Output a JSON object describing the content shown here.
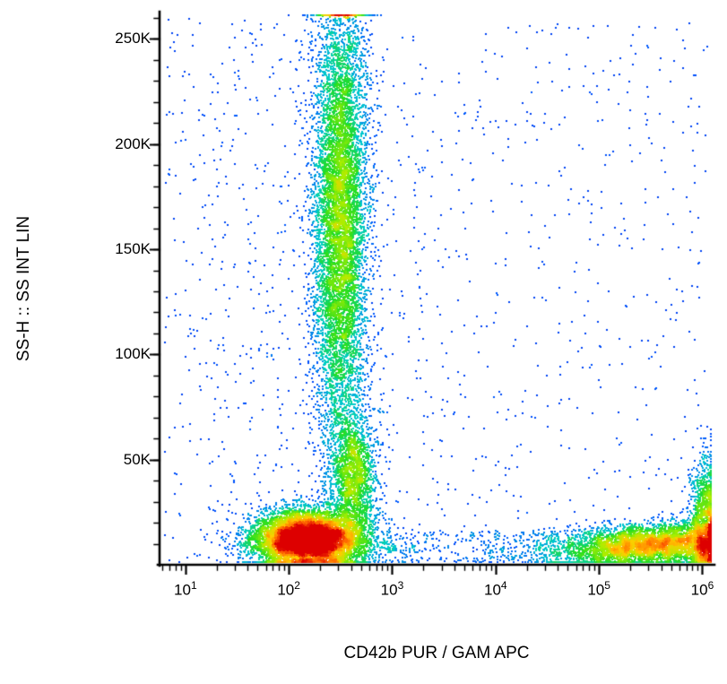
{
  "figure": {
    "background": "#ffffff",
    "axis_color": "#000000"
  },
  "chart_data": {
    "type": "scatter",
    "subtype": "flow_cytometry_density_dot_plot",
    "title": "",
    "xlabel": "CD42b PUR / GAM APC",
    "ylabel": "SS-H :: SS INT LIN",
    "x_scale": "log10",
    "y_scale": "linear",
    "x_domain_log10": [
      0.75,
      6.1
    ],
    "y_domain": [
      0,
      262144
    ],
    "x_ticks": [
      {
        "value": 10,
        "base": "10",
        "exp": "1"
      },
      {
        "value": 100,
        "base": "10",
        "exp": "2"
      },
      {
        "value": 1000,
        "base": "10",
        "exp": "3"
      },
      {
        "value": 10000,
        "base": "10",
        "exp": "4"
      },
      {
        "value": 100000,
        "base": "10",
        "exp": "5"
      },
      {
        "value": 1000000,
        "base": "10",
        "exp": "6"
      }
    ],
    "y_ticks": [
      {
        "value": 50000,
        "label": "50K"
      },
      {
        "value": 100000,
        "label": "100K"
      },
      {
        "value": 150000,
        "label": "150K"
      },
      {
        "value": 200000,
        "label": "200K"
      },
      {
        "value": 250000,
        "label": "250K"
      }
    ],
    "y_minor_step": 10000,
    "colormap_stops": [
      {
        "t": 0.0,
        "color": "#0000c8"
      },
      {
        "t": 0.3,
        "color": "#0055ff"
      },
      {
        "t": 0.48,
        "color": "#00cccc"
      },
      {
        "t": 0.62,
        "color": "#22dd22"
      },
      {
        "t": 0.75,
        "color": "#aaee00"
      },
      {
        "t": 0.85,
        "color": "#ffcc00"
      },
      {
        "t": 0.93,
        "color": "#ff6600"
      },
      {
        "t": 1.0,
        "color": "#dd0000"
      }
    ],
    "density_exponent": 0.35,
    "density_ref_percentile": 0.985,
    "random_seed": 42,
    "populations": [
      {
        "name": "low-ss-main-blob",
        "count": 9000,
        "x_log10_mean": 2.2,
        "x_log10_sd": 0.27,
        "y_mean": 12000,
        "y_sd": 7000
      },
      {
        "name": "high-ss-streak",
        "count": 8500,
        "x_log10_mean": 2.5,
        "x_log10_sd": 0.13,
        "y_mean": 165000,
        "y_sd": 57000
      },
      {
        "name": "bridge-cluster",
        "count": 1800,
        "x_log10_mean": 2.63,
        "x_log10_sd": 0.11,
        "y_mean": 42000,
        "y_sd": 14000
      },
      {
        "name": "cd42b-positive-line",
        "count": 5200,
        "x_log10_mean": 5.55,
        "x_log10_sd": 0.5,
        "y_mean": 7000,
        "y_sd": 5000,
        "y_slope_per_decade": 2500,
        "x_slope_ref": 4.5
      },
      {
        "name": "right-edge-pile",
        "count": 1600,
        "x_log10_mean": 6.03,
        "x_log10_sd": 0.07,
        "y_mean": 18000,
        "y_sd": 16000,
        "y_abs": true
      },
      {
        "name": "background-left",
        "count": 800,
        "uniform": true,
        "x_log10_range": [
          0.8,
          3.4
        ],
        "y_range": [
          500,
          260000
        ]
      },
      {
        "name": "background-right",
        "count": 500,
        "uniform": true,
        "x_log10_range": [
          3.4,
          6.06
        ],
        "y_range": [
          500,
          260000
        ]
      },
      {
        "name": "bottom-sparse-band",
        "count": 320,
        "uniform": true,
        "x_log10_range": [
          2.9,
          4.6
        ],
        "y_range": [
          600,
          16000
        ]
      }
    ]
  }
}
